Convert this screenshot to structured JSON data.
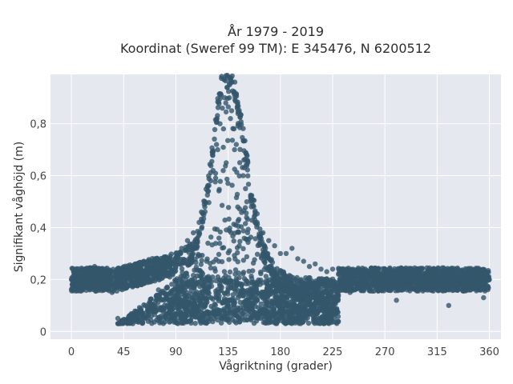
{
  "chart_data": {
    "type": "scatter",
    "title_line1": "År 1979 - 2019",
    "title_line2": "Koordinat (Sweref 99 TM): E 345476, N 6200512",
    "xlabel": "Vågriktning (grader)",
    "ylabel": "Signifikant våghöjd (m)",
    "xlim": [
      -18,
      370
    ],
    "ylim": [
      -0.03,
      0.99
    ],
    "xticks": [
      {
        "value": 0,
        "label": "0"
      },
      {
        "value": 45,
        "label": "45"
      },
      {
        "value": 90,
        "label": "90"
      },
      {
        "value": 135,
        "label": "135"
      },
      {
        "value": 180,
        "label": "180"
      },
      {
        "value": 225,
        "label": "225"
      },
      {
        "value": 270,
        "label": "270"
      },
      {
        "value": 315,
        "label": "315"
      },
      {
        "value": 360,
        "label": "360"
      }
    ],
    "yticks": [
      {
        "value": 0,
        "label": "0"
      },
      {
        "value": 0.2,
        "label": "0,2"
      },
      {
        "value": 0.4,
        "label": "0,4"
      },
      {
        "value": 0.6,
        "label": "0,6"
      },
      {
        "value": 0.8,
        "label": "0,8"
      }
    ],
    "grid": true,
    "colors": {
      "marker": "#33566b",
      "plot_bg": "#e6e8f0",
      "grid": "#ffffff"
    },
    "series": [
      {
        "x": [
          0,
          10,
          20,
          30,
          45,
          60,
          75,
          90,
          100,
          110,
          115,
          120,
          125,
          128,
          130,
          132,
          134,
          136,
          138,
          140,
          145,
          150,
          160,
          170,
          180,
          195,
          210,
          225,
          240,
          270,
          300,
          315,
          330,
          345,
          360,
          5,
          15,
          25,
          35,
          40,
          50,
          55,
          65,
          70,
          80,
          85,
          95,
          105,
          112,
          118,
          122,
          126,
          131,
          133,
          137,
          142,
          148,
          155,
          165,
          175,
          185,
          190,
          200,
          205,
          215,
          220,
          230,
          235,
          245,
          250,
          255,
          260,
          265,
          275,
          280,
          285,
          290,
          295,
          305,
          310,
          320,
          325,
          335,
          340,
          350,
          355,
          40,
          45,
          50,
          60,
          70,
          80,
          90,
          100,
          110,
          120,
          130,
          140,
          150,
          160,
          170,
          180,
          190,
          200,
          210,
          220,
          230,
          240,
          250,
          20,
          35,
          195,
          210,
          280,
          325,
          355,
          60,
          75,
          85
        ],
        "y": [
          0.2,
          0.21,
          0.2,
          0.2,
          0.22,
          0.24,
          0.26,
          0.3,
          0.35,
          0.42,
          0.5,
          0.58,
          0.72,
          0.8,
          0.86,
          0.9,
          0.94,
          0.9,
          0.85,
          0.78,
          0.65,
          0.55,
          0.42,
          0.35,
          0.3,
          0.28,
          0.26,
          0.24,
          0.22,
          0.2,
          0.2,
          0.2,
          0.2,
          0.2,
          0.2,
          0.23,
          0.18,
          0.22,
          0.19,
          0.24,
          0.22,
          0.26,
          0.25,
          0.27,
          0.28,
          0.29,
          0.32,
          0.38,
          0.46,
          0.54,
          0.62,
          0.7,
          0.78,
          0.88,
          0.82,
          0.72,
          0.6,
          0.48,
          0.38,
          0.33,
          0.3,
          0.32,
          0.27,
          0.25,
          0.24,
          0.23,
          0.22,
          0.21,
          0.21,
          0.2,
          0.21,
          0.2,
          0.19,
          0.2,
          0.21,
          0.2,
          0.2,
          0.22,
          0.2,
          0.19,
          0.2,
          0.21,
          0.2,
          0.19,
          0.21,
          0.2,
          0.05,
          0.04,
          0.06,
          0.08,
          0.1,
          0.12,
          0.14,
          0.1,
          0.08,
          0.06,
          0.05,
          0.08,
          0.1,
          0.12,
          0.1,
          0.08,
          0.1,
          0.12,
          0.11,
          0.12,
          0.14,
          0.15,
          0.16,
          0.25,
          0.15,
          0.06,
          0.05,
          0.12,
          0.1,
          0.13,
          0.18,
          0.16,
          0.12
        ]
      }
    ]
  }
}
